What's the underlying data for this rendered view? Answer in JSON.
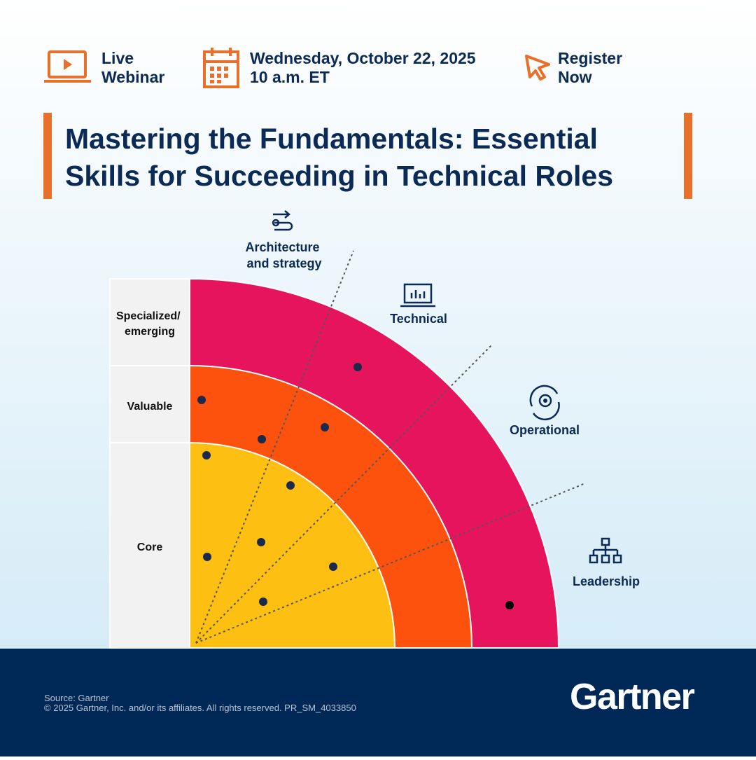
{
  "header": {
    "webinar": [
      "Live",
      "Webinar"
    ],
    "date": [
      "Wednesday, October 22, 2025",
      "10 a.m. ET"
    ],
    "register": [
      "Register",
      "Now"
    ]
  },
  "title": [
    "Mastering the Fundamentals: Essential",
    "Skills for Succeeding in Technical Roles"
  ],
  "diagram": {
    "rows": [
      [
        "Specialized/",
        "emerging"
      ],
      [
        "Valuable"
      ],
      [
        "Core"
      ]
    ],
    "axes": [
      [
        "Architecture",
        "and strategy"
      ],
      [
        "Technical"
      ],
      [
        "Operational"
      ],
      [
        "Leadership"
      ]
    ]
  },
  "footer": {
    "source": "Source: Gartner",
    "copyright": "© 2025 Gartner, Inc. and/or its affiliates. All rights reserved. PR_SM_4033850",
    "logo": "Gartner"
  }
}
